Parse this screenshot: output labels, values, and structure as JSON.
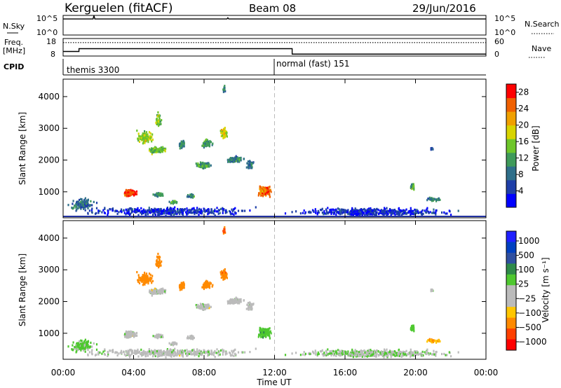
{
  "header": {
    "station": "Kerguelen (fitACF)",
    "beam": "Beam 08",
    "date": "29/Jun/2016"
  },
  "strip_labels": {
    "nsky": "N.Sky",
    "nsky_ticks": [
      "10^5",
      "10^0"
    ],
    "nsearch": "N.Search",
    "nsearch_ticks": [
      "10^5",
      "10^0"
    ],
    "freq_line1": "Freq.",
    "freq_line2": "[MHz]",
    "freq_ticks": [
      "18",
      "8"
    ],
    "nave": "Nave",
    "nave_ticks": [
      "60",
      "0"
    ],
    "cpid": "CPID"
  },
  "cpid_segments": [
    {
      "label": "themis 3300",
      "start_hour": 0
    },
    {
      "label": "normal (fast) 151",
      "start_hour": 12
    }
  ],
  "colors": {
    "power": [
      "#0000ff",
      "#1f3fa8",
      "#2f6f8a",
      "#3f9a5a",
      "#6ec62a",
      "#d8d400",
      "#f0a000",
      "#f06000",
      "#ff0000"
    ],
    "velocity": [
      "#ff0000",
      "#ff4000",
      "#ff8a00",
      "#ffc600",
      "#bbbbbb",
      "#bbbbbb",
      "#4fc830",
      "#2f8a4a",
      "#2f4fa0",
      "#0040c0",
      "#2020ff"
    ],
    "ground": "#8a8a8a"
  },
  "chart_data": [
    {
      "type": "line",
      "name": "strip-nsky",
      "title": "",
      "x": [
        0,
        1.7,
        1.75,
        1.8,
        9.3,
        9.35,
        9.4,
        24
      ],
      "values": [
        4.1,
        4.1,
        5.0,
        4.1,
        4.1,
        4.4,
        4.1,
        4.1
      ],
      "ylim": [
        0,
        5
      ]
    },
    {
      "type": "line",
      "name": "strip-frequency",
      "x": [
        0,
        0.9,
        0.9,
        13,
        13,
        24
      ],
      "values": [
        10.6,
        10.6,
        12.2,
        12.2,
        9.1,
        9.1
      ],
      "nave_x": [
        0,
        24
      ],
      "nave_values": [
        46,
        46
      ],
      "ylim": [
        8,
        18
      ],
      "nave_ylim": [
        0,
        60
      ]
    },
    {
      "type": "heatmap",
      "name": "power",
      "ylabel": "Slant Range [km]",
      "xlabel": "Time UT",
      "xlim": [
        0,
        24
      ],
      "ylim": [
        180,
        4550
      ],
      "x_ticks": [
        "00:00",
        "04:00",
        "08:00",
        "12:00",
        "16:00",
        "20:00",
        "00:00"
      ],
      "y_ticks": [
        1000,
        2000,
        3000,
        4000
      ],
      "colorbar_label": "Power [dB]",
      "colorbar_ticks": [
        "28",
        "24",
        "20",
        "16",
        "12",
        "8",
        "4"
      ],
      "colorbar_range": [
        0,
        30
      ],
      "marker_hour": 12
    },
    {
      "type": "heatmap",
      "name": "velocity",
      "ylabel": "Slant Range [km]",
      "xlabel": "Time UT",
      "xlim": [
        0,
        24
      ],
      "ylim": [
        180,
        4550
      ],
      "x_ticks": [
        "00:00",
        "04:00",
        "08:00",
        "12:00",
        "16:00",
        "20:00",
        "00:00"
      ],
      "y_ticks": [
        1000,
        2000,
        3000,
        4000
      ],
      "colorbar_label": "Velocity [m s⁻¹]",
      "colorbar_ticks": [
        "1000",
        "500",
        "100",
        "25",
        "−25",
        "−100",
        "−500",
        "−1000"
      ],
      "marker_hour": 12
    }
  ],
  "echo_regions": [
    {
      "t": 3.8,
      "r": 1000,
      "dt": 0.45,
      "dr": 140,
      "n": 140,
      "power": 27,
      "vel": 5
    },
    {
      "t": 4.6,
      "r": 2750,
      "dt": 0.55,
      "dr": 230,
      "n": 130,
      "power": 16,
      "vel": -300
    },
    {
      "t": 5.3,
      "r": 2350,
      "dt": 0.6,
      "dr": 150,
      "n": 110,
      "power": 14,
      "vel": 5
    },
    {
      "t": 5.4,
      "r": 3300,
      "dt": 0.25,
      "dr": 280,
      "n": 40,
      "power": 16,
      "vel": -300
    },
    {
      "t": 6.7,
      "r": 2550,
      "dt": 0.25,
      "dr": 180,
      "n": 35,
      "power": 10,
      "vel": -200
    },
    {
      "t": 8.1,
      "r": 2550,
      "dt": 0.4,
      "dr": 160,
      "n": 50,
      "power": 12,
      "vel": -250
    },
    {
      "t": 9.1,
      "r": 2900,
      "dt": 0.25,
      "dr": 250,
      "n": 50,
      "power": 18,
      "vel": -400
    },
    {
      "t": 9.1,
      "r": 4250,
      "dt": 0.08,
      "dr": 150,
      "n": 15,
      "power": 10,
      "vel": -500
    },
    {
      "t": 7.9,
      "r": 1870,
      "dt": 0.55,
      "dr": 130,
      "n": 100,
      "power": 12,
      "vel": 5
    },
    {
      "t": 9.7,
      "r": 2050,
      "dt": 0.6,
      "dr": 120,
      "n": 90,
      "power": 10,
      "vel": 5
    },
    {
      "t": 10.6,
      "r": 1900,
      "dt": 0.3,
      "dr": 200,
      "n": 40,
      "power": 8,
      "vel": 5
    },
    {
      "t": 11.4,
      "r": 1050,
      "dt": 0.45,
      "dr": 200,
      "n": 130,
      "power": 24,
      "vel": 80
    },
    {
      "t": 5.4,
      "r": 950,
      "dt": 0.35,
      "dr": 80,
      "n": 35,
      "power": 10,
      "vel": 5
    },
    {
      "t": 7.2,
      "r": 900,
      "dt": 0.3,
      "dr": 80,
      "n": 30,
      "power": 10,
      "vel": 5
    },
    {
      "t": 6.2,
      "r": 700,
      "dt": 0.3,
      "dr": 60,
      "n": 25,
      "power": 12,
      "vel": 5
    },
    {
      "t": 1.0,
      "r": 650,
      "dt": 0.9,
      "dr": 250,
      "n": 120,
      "power": 8,
      "vel": 40
    },
    {
      "t": 19.8,
      "r": 1200,
      "dt": 0.15,
      "dr": 130,
      "n": 30,
      "power": 12,
      "vel": 60
    },
    {
      "t": 21.0,
      "r": 800,
      "dt": 0.5,
      "dr": 80,
      "n": 40,
      "power": 10,
      "vel": -100
    },
    {
      "t": 20.9,
      "r": 2400,
      "dt": 0.08,
      "dr": 60,
      "n": 8,
      "power": 4,
      "vel": 5
    },
    {
      "t": 17.5,
      "r": 400,
      "dt": 5.5,
      "dr": 150,
      "n": 450,
      "power": 4,
      "vel": 20
    },
    {
      "t": 6.0,
      "r": 420,
      "dt": 5.9,
      "dr": 160,
      "n": 400,
      "power": 4,
      "vel": 10
    }
  ]
}
